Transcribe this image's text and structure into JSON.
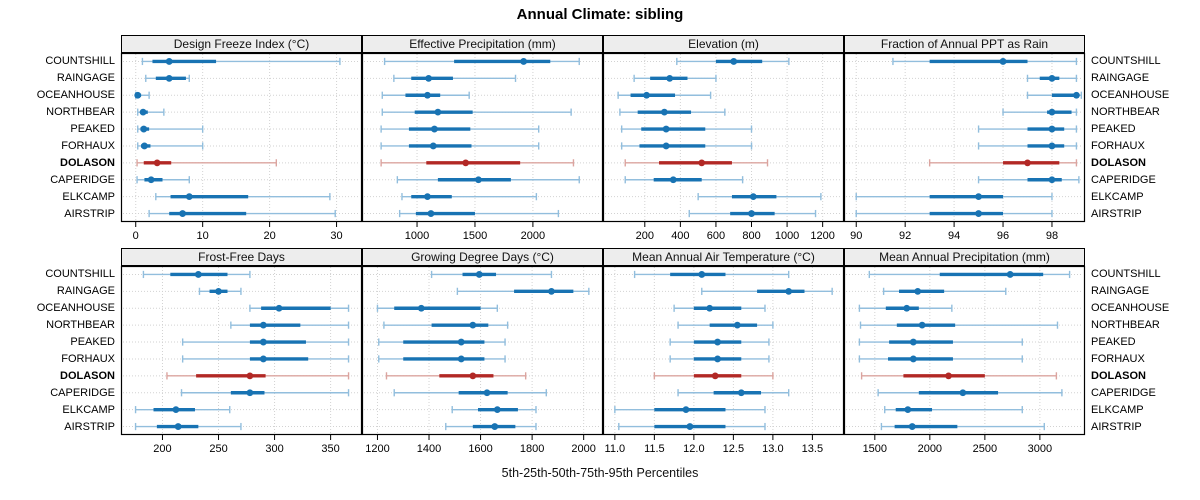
{
  "title": "Annual Climate: sibling",
  "caption": "5th-25th-50th-75th-95th Percentiles",
  "percentile_labels": [
    "5th",
    "25th",
    "50th",
    "75th",
    "95th"
  ],
  "sites": [
    "COUNTSHILL",
    "RAINGAGE",
    "OCEANHOUSE",
    "NORTHBEAR",
    "PEAKED",
    "FORHAUX",
    "DOLASON",
    "CAPERIDGE",
    "ELKCAMP",
    "AIRSTRIP"
  ],
  "highlight_site": "DOLASON",
  "colors": {
    "series": "#1873b3",
    "series_light": "#92bedd",
    "highlight": "#b22825",
    "highlight_light": "#dba49f",
    "header_bg": "#ededed",
    "grid": "#d2d2d2",
    "border": "#000000"
  },
  "chart_data": {
    "type": "dotplot-percentiles",
    "layout": {
      "rows": 2,
      "cols": 4
    },
    "legend_note": "each row shows 5th/25th/50th/75th/95th percentiles; thin line = 5th-95th, thick line = 25th-75th, dot = median",
    "panels": [
      {
        "title": "Design Freeze Index (°C)",
        "xlim": [
          -2.2,
          33.8
        ],
        "tick_values": [
          0,
          10,
          20,
          30
        ],
        "tick_labels": [
          "0",
          "10",
          "20",
          "30"
        ],
        "values": [
          [
            1,
            2.5,
            5,
            12,
            30.5
          ],
          [
            1.5,
            3,
            5,
            7.5,
            8
          ],
          [
            0,
            0.1,
            0.3,
            0.8,
            2
          ],
          [
            0.3,
            0.7,
            1.1,
            1.8,
            4.2
          ],
          [
            0.3,
            0.7,
            1.2,
            2,
            10
          ],
          [
            0.3,
            0.8,
            1.3,
            2.2,
            10
          ],
          [
            0.2,
            1.2,
            3.2,
            5.3,
            21
          ],
          [
            0.2,
            1.3,
            2.3,
            4,
            8
          ],
          [
            3,
            5.2,
            8,
            16.8,
            29
          ],
          [
            2,
            5,
            7,
            16.5,
            29.8
          ]
        ]
      },
      {
        "title": "Effective Precipitation (mm)",
        "xlim": [
          525,
          2605
        ],
        "tick_values": [
          1000,
          1500,
          2000
        ],
        "tick_labels": [
          "1000",
          "1500",
          "2000"
        ],
        "values": [
          [
            720,
            1320,
            1920,
            2150,
            2400
          ],
          [
            800,
            950,
            1100,
            1310,
            1850
          ],
          [
            700,
            900,
            1090,
            1200,
            1450
          ],
          [
            700,
            980,
            1180,
            1480,
            2330
          ],
          [
            690,
            930,
            1150,
            1460,
            2050
          ],
          [
            690,
            930,
            1140,
            1470,
            2050
          ],
          [
            690,
            1080,
            1420,
            1890,
            2350
          ],
          [
            830,
            1180,
            1530,
            1810,
            2400
          ],
          [
            870,
            950,
            1090,
            1300,
            2030
          ],
          [
            850,
            990,
            1120,
            1500,
            2220
          ]
        ]
      },
      {
        "title": "Elevation (m)",
        "xlim": [
          -35,
          1320
        ],
        "tick_values": [
          200,
          400,
          600,
          800,
          1000,
          1200
        ],
        "tick_labels": [
          "200",
          "400",
          "600",
          "800",
          "1000",
          "1200"
        ],
        "values": [
          [
            380,
            600,
            700,
            860,
            1010
          ],
          [
            140,
            230,
            340,
            440,
            600
          ],
          [
            50,
            120,
            210,
            370,
            570
          ],
          [
            60,
            160,
            310,
            460,
            650
          ],
          [
            70,
            180,
            320,
            540,
            800
          ],
          [
            70,
            170,
            320,
            540,
            800
          ],
          [
            90,
            280,
            520,
            690,
            890
          ],
          [
            90,
            250,
            360,
            520,
            750
          ],
          [
            500,
            690,
            810,
            940,
            1190
          ],
          [
            450,
            680,
            800,
            930,
            1160
          ]
        ]
      },
      {
        "title": "Fraction of Annual PPT as Rain",
        "xlim": [
          89.5,
          99.35
        ],
        "tick_values": [
          90,
          92,
          94,
          96,
          98
        ],
        "tick_labels": [
          "90",
          "92",
          "94",
          "96",
          "98"
        ],
        "values": [
          [
            91.5,
            93,
            96,
            97,
            99
          ],
          [
            97,
            97.5,
            98,
            98.3,
            99
          ],
          [
            97,
            98,
            99,
            99.1,
            99.2
          ],
          [
            96,
            97.8,
            98,
            98.8,
            99
          ],
          [
            95,
            97,
            98,
            98.5,
            99
          ],
          [
            95,
            97,
            98,
            98.5,
            99
          ],
          [
            93,
            96,
            97,
            98.3,
            99
          ],
          [
            95,
            97,
            98,
            98.4,
            99.1
          ],
          [
            90,
            93,
            95,
            96,
            98
          ],
          [
            90,
            93,
            95,
            96,
            98
          ]
        ]
      },
      {
        "title": "Frost-Free Days",
        "xlim": [
          163,
          378
        ],
        "tick_values": [
          200,
          250,
          300,
          350
        ],
        "tick_labels": [
          "200",
          "250",
          "300",
          "350"
        ],
        "values": [
          [
            183,
            207,
            232,
            258,
            278
          ],
          [
            233,
            242,
            250,
            258,
            270
          ],
          [
            278,
            288,
            304,
            350,
            366
          ],
          [
            261,
            278,
            290,
            323,
            366
          ],
          [
            218,
            278,
            290,
            328,
            366
          ],
          [
            218,
            278,
            290,
            330,
            366
          ],
          [
            204,
            230,
            278,
            292,
            366
          ],
          [
            217,
            261,
            278,
            291,
            366
          ],
          [
            176,
            192,
            212,
            229,
            260
          ],
          [
            176,
            195,
            214,
            232,
            270
          ]
        ]
      },
      {
        "title": "Growing Degree Days (°C)",
        "xlim": [
          1140,
          2075
        ],
        "tick_values": [
          1200,
          1400,
          1600,
          1800,
          2000
        ],
        "tick_labels": [
          "1200",
          "1400",
          "1600",
          "1800",
          "2000"
        ],
        "values": [
          [
            1410,
            1530,
            1595,
            1660,
            1875
          ],
          [
            1510,
            1730,
            1875,
            1960,
            2020
          ],
          [
            1200,
            1265,
            1370,
            1600,
            1665
          ],
          [
            1225,
            1410,
            1570,
            1630,
            1705
          ],
          [
            1205,
            1300,
            1525,
            1615,
            1695
          ],
          [
            1205,
            1300,
            1525,
            1615,
            1695
          ],
          [
            1235,
            1440,
            1570,
            1650,
            1775
          ],
          [
            1265,
            1515,
            1625,
            1705,
            1855
          ],
          [
            1490,
            1590,
            1665,
            1745,
            1815
          ],
          [
            1465,
            1570,
            1655,
            1735,
            1815
          ]
        ]
      },
      {
        "title": "Mean Annual Air Temperature (°C)",
        "xlim": [
          10.85,
          13.9
        ],
        "tick_values": [
          11.0,
          11.5,
          12.0,
          12.5,
          13.0,
          13.5
        ],
        "tick_labels": [
          "11.0",
          "11.5",
          "12.0",
          "12.5",
          "13.0",
          "13.5"
        ],
        "values": [
          [
            11.25,
            11.7,
            12.1,
            12.4,
            13.2
          ],
          [
            12.1,
            12.8,
            13.2,
            13.4,
            13.75
          ],
          [
            11.75,
            12.0,
            12.2,
            12.6,
            12.9
          ],
          [
            11.8,
            12.2,
            12.55,
            12.8,
            13.0
          ],
          [
            11.7,
            12.0,
            12.3,
            12.6,
            12.95
          ],
          [
            11.7,
            12.0,
            12.3,
            12.6,
            12.95
          ],
          [
            11.5,
            12.0,
            12.27,
            12.6,
            13.0
          ],
          [
            11.8,
            12.25,
            12.6,
            12.85,
            13.2
          ],
          [
            11.0,
            11.5,
            11.9,
            12.4,
            12.9
          ],
          [
            11.05,
            11.5,
            11.95,
            12.4,
            12.9
          ]
        ]
      },
      {
        "title": "Mean Annual Precipitation (mm)",
        "xlim": [
          1220,
          3410
        ],
        "tick_values": [
          1500,
          2000,
          2500,
          3000
        ],
        "tick_labels": [
          "1500",
          "2000",
          "2500",
          "3000"
        ],
        "values": [
          [
            1450,
            2090,
            2730,
            3030,
            3270
          ],
          [
            1580,
            1720,
            1890,
            2130,
            2690
          ],
          [
            1360,
            1600,
            1790,
            1900,
            2200
          ],
          [
            1370,
            1700,
            1930,
            2230,
            3160
          ],
          [
            1360,
            1630,
            1850,
            2210,
            2840
          ],
          [
            1360,
            1620,
            1850,
            2210,
            2840
          ],
          [
            1380,
            1760,
            2170,
            2500,
            3150
          ],
          [
            1530,
            1900,
            2300,
            2620,
            3200
          ],
          [
            1590,
            1690,
            1800,
            2020,
            2840
          ],
          [
            1560,
            1680,
            1840,
            2250,
            3040
          ]
        ]
      }
    ]
  }
}
